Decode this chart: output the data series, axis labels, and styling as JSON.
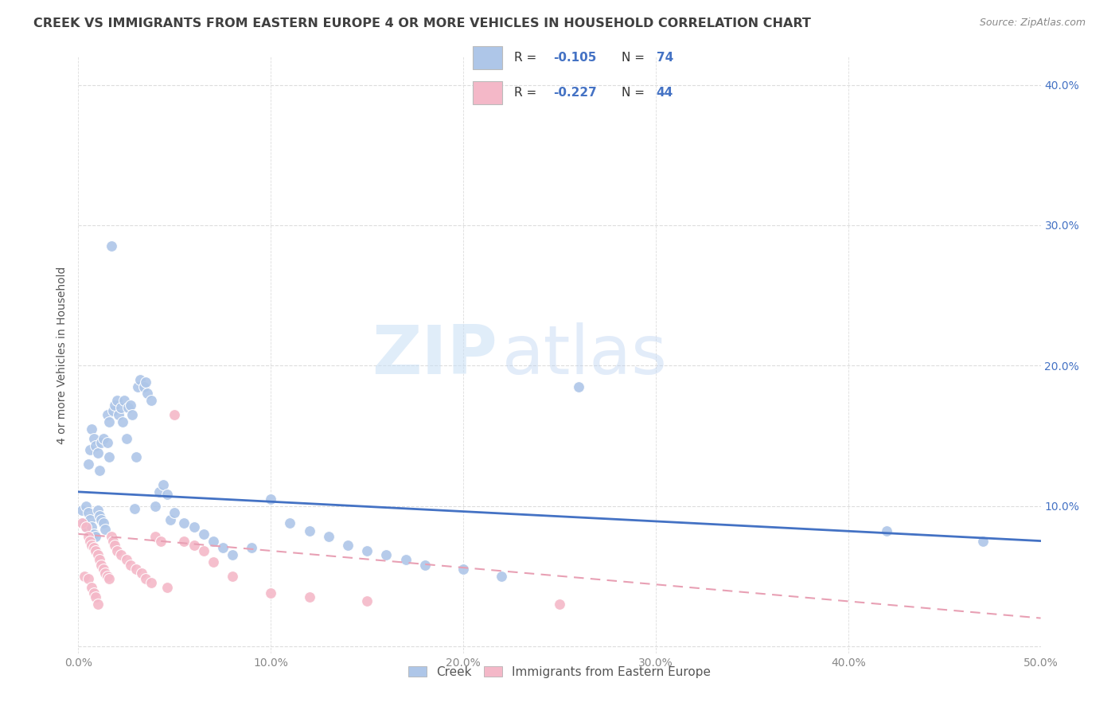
{
  "title": "CREEK VS IMMIGRANTS FROM EASTERN EUROPE 4 OR MORE VEHICLES IN HOUSEHOLD CORRELATION CHART",
  "source": "Source: ZipAtlas.com",
  "ylabel": "4 or more Vehicles in Household",
  "xlim": [
    0.0,
    0.5
  ],
  "ylim": [
    -0.005,
    0.42
  ],
  "xticks": [
    0.0,
    0.1,
    0.2,
    0.3,
    0.4,
    0.5
  ],
  "yticks": [
    0.0,
    0.1,
    0.2,
    0.3,
    0.4
  ],
  "watermark_zip": "ZIP",
  "watermark_atlas": "atlas",
  "legend_label_creek": "Creek",
  "legend_label_imm": "Immigrants from Eastern Europe",
  "creek_color": "#aec6e8",
  "imm_color": "#f4b8c8",
  "creek_line_color": "#4472c4",
  "imm_line_color": "#e8a0b4",
  "creek_R": -0.105,
  "creek_N": 74,
  "imm_R": -0.227,
  "imm_N": 44,
  "creek_scatter_x": [
    0.002,
    0.003,
    0.004,
    0.004,
    0.005,
    0.005,
    0.006,
    0.006,
    0.007,
    0.007,
    0.008,
    0.008,
    0.009,
    0.009,
    0.01,
    0.01,
    0.011,
    0.011,
    0.012,
    0.012,
    0.013,
    0.013,
    0.014,
    0.015,
    0.015,
    0.016,
    0.016,
    0.017,
    0.018,
    0.019,
    0.02,
    0.021,
    0.022,
    0.023,
    0.024,
    0.025,
    0.026,
    0.027,
    0.028,
    0.029,
    0.03,
    0.031,
    0.032,
    0.034,
    0.035,
    0.036,
    0.038,
    0.04,
    0.042,
    0.044,
    0.046,
    0.048,
    0.05,
    0.055,
    0.06,
    0.065,
    0.07,
    0.075,
    0.08,
    0.09,
    0.1,
    0.11,
    0.12,
    0.13,
    0.14,
    0.15,
    0.16,
    0.17,
    0.18,
    0.2,
    0.22,
    0.26,
    0.42,
    0.47
  ],
  "creek_scatter_y": [
    0.097,
    0.088,
    0.1,
    0.085,
    0.095,
    0.13,
    0.09,
    0.14,
    0.085,
    0.155,
    0.08,
    0.148,
    0.078,
    0.143,
    0.097,
    0.138,
    0.093,
    0.125,
    0.09,
    0.145,
    0.088,
    0.148,
    0.083,
    0.165,
    0.145,
    0.16,
    0.135,
    0.285,
    0.168,
    0.172,
    0.175,
    0.165,
    0.17,
    0.16,
    0.175,
    0.148,
    0.17,
    0.172,
    0.165,
    0.098,
    0.135,
    0.185,
    0.19,
    0.185,
    0.188,
    0.18,
    0.175,
    0.1,
    0.11,
    0.115,
    0.108,
    0.09,
    0.095,
    0.088,
    0.085,
    0.08,
    0.075,
    0.07,
    0.065,
    0.07,
    0.105,
    0.088,
    0.082,
    0.078,
    0.072,
    0.068,
    0.065,
    0.062,
    0.058,
    0.055,
    0.05,
    0.185,
    0.082,
    0.075
  ],
  "imm_scatter_x": [
    0.002,
    0.003,
    0.004,
    0.005,
    0.005,
    0.006,
    0.007,
    0.007,
    0.008,
    0.008,
    0.009,
    0.009,
    0.01,
    0.01,
    0.011,
    0.012,
    0.013,
    0.014,
    0.015,
    0.016,
    0.017,
    0.018,
    0.019,
    0.02,
    0.022,
    0.025,
    0.027,
    0.03,
    0.033,
    0.035,
    0.038,
    0.04,
    0.043,
    0.046,
    0.05,
    0.055,
    0.06,
    0.065,
    0.07,
    0.08,
    0.1,
    0.12,
    0.15,
    0.25
  ],
  "imm_scatter_y": [
    0.088,
    0.05,
    0.085,
    0.078,
    0.048,
    0.075,
    0.072,
    0.042,
    0.07,
    0.038,
    0.068,
    0.035,
    0.065,
    0.03,
    0.062,
    0.058,
    0.055,
    0.052,
    0.05,
    0.048,
    0.078,
    0.075,
    0.072,
    0.068,
    0.065,
    0.062,
    0.058,
    0.055,
    0.052,
    0.048,
    0.045,
    0.078,
    0.075,
    0.042,
    0.165,
    0.075,
    0.072,
    0.068,
    0.06,
    0.05,
    0.038,
    0.035,
    0.032,
    0.03
  ],
  "creek_trend_x": [
    0.0,
    0.5
  ],
  "creek_trend_y_start": 0.11,
  "creek_trend_y_end": 0.075,
  "imm_trend_x": [
    0.0,
    0.5
  ],
  "imm_trend_y_start": 0.08,
  "imm_trend_y_end": 0.02,
  "background_color": "#ffffff",
  "grid_color": "#dddddd",
  "title_color": "#404040",
  "right_axis_color": "#4472c4",
  "legend_R_color": "#4472c4",
  "legend_text_color": "#333333"
}
